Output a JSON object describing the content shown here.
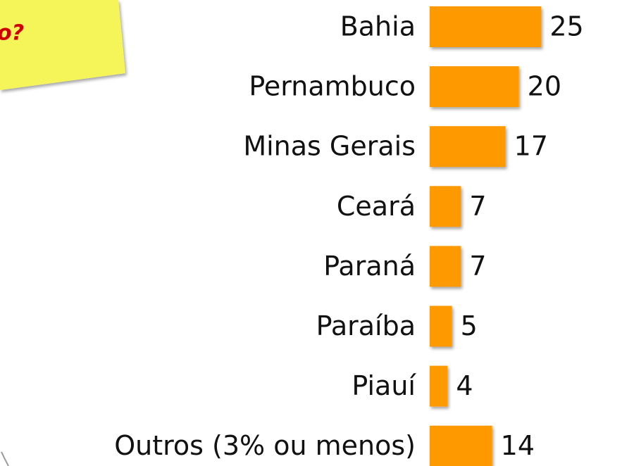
{
  "note": {
    "text": "o?"
  },
  "chart_data": {
    "type": "bar",
    "orientation": "horizontal",
    "categories": [
      "Bahia",
      "Pernambuco",
      "Minas Gerais",
      "Ceará",
      "Paraná",
      "Paraíba",
      "Piauí",
      "Outros (3% ou menos)"
    ],
    "values": [
      25,
      20,
      17,
      7,
      7,
      5,
      4,
      14
    ],
    "color": "#ff9900",
    "xlim": [
      0,
      27
    ]
  }
}
